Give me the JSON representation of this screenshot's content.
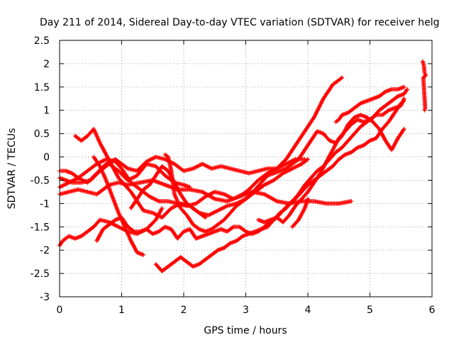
{
  "chart_data": {
    "type": "scatter",
    "title": "Day 211 of 2014, Sidereal Day-to-day VTEC variation (SDTVAR) for receiver helg",
    "xlabel": "GPS time / hours",
    "ylabel": "SDTVAR / TECUs",
    "xlim": [
      0,
      6
    ],
    "ylim": [
      -3,
      2.5
    ],
    "xticks": [
      0,
      1,
      2,
      3,
      4,
      5,
      6
    ],
    "xtick_labels": [
      "0",
      "1",
      "2",
      "3",
      "4",
      "5",
      "6"
    ],
    "yticks": [
      2.5,
      2,
      1.5,
      1,
      0.5,
      0,
      -0.5,
      -1,
      -1.5,
      -2,
      -2.5,
      -3
    ],
    "ytick_labels": [
      "2.5",
      "2",
      "1.5",
      "1",
      "0.5",
      "0",
      "-0.5",
      "-1",
      "-1.5",
      "-2",
      "-2.5",
      "-3"
    ],
    "grid": true,
    "marker": "+",
    "color": "#ff0000",
    "series": [
      {
        "x": [
          0.0,
          0.1,
          0.2,
          0.3,
          0.45,
          0.6,
          0.75,
          0.9,
          1.0,
          1.1,
          1.25,
          1.4,
          1.55,
          1.7,
          1.85,
          2.0,
          2.15,
          2.3,
          2.45,
          2.6,
          2.75,
          2.9,
          3.05,
          3.2,
          3.35,
          3.5,
          3.65,
          3.8,
          3.95
        ],
        "y": [
          -0.3,
          -0.3,
          -0.35,
          -0.45,
          -0.55,
          -0.35,
          -0.15,
          -0.05,
          -0.15,
          -0.25,
          -0.3,
          -0.1,
          0.0,
          -0.05,
          -0.15,
          -0.3,
          -0.25,
          -0.15,
          -0.25,
          -0.2,
          -0.25,
          -0.3,
          -0.35,
          -0.3,
          -0.25,
          -0.25,
          -0.15,
          -0.05,
          -0.05
        ]
      },
      {
        "x": [
          0.0,
          0.1,
          0.2,
          0.35,
          0.5,
          0.65,
          0.8,
          0.95,
          1.1,
          1.25,
          1.4,
          1.55,
          1.7,
          1.85,
          2.0,
          2.1
        ],
        "y": [
          -0.45,
          -0.5,
          -0.55,
          -0.55,
          -0.5,
          -0.3,
          -0.15,
          -0.3,
          -0.5,
          -0.4,
          -0.15,
          -0.2,
          -0.4,
          -0.55,
          -0.6,
          -0.65
        ]
      },
      {
        "x": [
          0.0,
          0.15,
          0.3,
          0.45,
          0.6,
          0.75,
          0.9,
          1.0,
          1.15,
          1.3,
          1.45,
          1.6,
          1.75,
          1.9,
          2.05,
          2.2,
          2.35,
          2.5,
          2.65,
          2.8,
          2.95,
          3.05,
          3.2,
          3.35,
          3.5,
          3.65,
          3.8,
          3.95,
          4.1,
          4.25,
          4.4,
          4.55
        ],
        "y": [
          -0.65,
          -0.55,
          -0.45,
          -0.3,
          -0.15,
          -0.05,
          -0.1,
          -0.25,
          -0.55,
          -0.7,
          -0.85,
          -0.95,
          -0.95,
          -1.0,
          -1.05,
          -1.0,
          -0.85,
          -0.75,
          -0.8,
          -0.9,
          -0.8,
          -0.7,
          -0.5,
          -0.35,
          -0.25,
          -0.05,
          0.25,
          0.55,
          0.85,
          1.25,
          1.55,
          1.7
        ]
      },
      {
        "x": [
          0.0,
          0.15,
          0.3,
          0.45,
          0.6,
          0.7,
          0.8,
          0.95,
          1.1,
          1.3,
          1.5,
          1.7,
          1.9,
          2.1,
          2.3,
          2.5,
          2.7,
          2.9,
          3.1,
          3.3,
          3.5,
          3.7,
          3.9,
          4.1,
          4.3,
          4.5,
          4.7
        ],
        "y": [
          -0.8,
          -0.75,
          -0.7,
          -0.75,
          -0.8,
          -0.7,
          -0.6,
          -0.55,
          -0.6,
          -0.55,
          -0.5,
          -0.6,
          -0.7,
          -0.7,
          -0.75,
          -0.9,
          -0.95,
          -0.85,
          -0.75,
          -0.8,
          -0.95,
          -1.0,
          -0.95,
          -0.95,
          -1.0,
          -1.0,
          -0.95
        ]
      },
      {
        "x": [
          0.25,
          0.35,
          0.45,
          0.55,
          0.65,
          0.75,
          0.85,
          0.95,
          1.05,
          1.15,
          1.25,
          1.35,
          1.5,
          1.65,
          1.8,
          1.95,
          2.1,
          2.25,
          2.4,
          2.55,
          2.7,
          2.85,
          3.0,
          3.15,
          3.3,
          3.45,
          3.6,
          3.75,
          3.9,
          4.0
        ],
        "y": [
          0.45,
          0.35,
          0.45,
          0.6,
          0.3,
          0.05,
          -0.2,
          -0.45,
          -0.6,
          -0.75,
          -0.95,
          -1.15,
          -1.2,
          -1.3,
          -1.1,
          -1.0,
          -1.05,
          -1.2,
          -1.25,
          -1.15,
          -1.05,
          -1.0,
          -0.9,
          -0.75,
          -0.6,
          -0.5,
          -0.35,
          -0.25,
          -0.15,
          -0.05
        ]
      },
      {
        "x": [
          0.0,
          0.05,
          0.1,
          0.15,
          0.25,
          0.35,
          0.45,
          0.55,
          0.65,
          0.8,
          0.95,
          1.1,
          1.25,
          1.4,
          1.55,
          1.65
        ],
        "y": [
          -1.9,
          -1.8,
          -1.75,
          -1.7,
          -1.75,
          -1.7,
          -1.6,
          -1.5,
          -1.35,
          -1.4,
          -1.5,
          -1.6,
          -1.65,
          -1.55,
          -1.35,
          -1.1
        ]
      },
      {
        "x": [
          0.6,
          0.7,
          0.8,
          0.9,
          1.0,
          1.1,
          1.2,
          1.3,
          1.4,
          1.5,
          1.6,
          1.7,
          1.8,
          1.9,
          2.0,
          2.1,
          2.2,
          2.3,
          2.4,
          2.5,
          2.6,
          2.7,
          2.8,
          2.9,
          3.0,
          3.1,
          3.2,
          3.3,
          3.4,
          3.5,
          3.6,
          3.7,
          3.8,
          3.9,
          4.0,
          4.1,
          4.2,
          4.3,
          4.4,
          4.5,
          4.6,
          4.7,
          4.8,
          4.9,
          5.0,
          5.1,
          5.2,
          5.3,
          5.4,
          5.5,
          5.55
        ],
        "y": [
          -1.8,
          -1.55,
          -1.45,
          -1.35,
          -1.3,
          -1.5,
          -1.6,
          -1.6,
          -1.55,
          -1.65,
          -1.6,
          -1.5,
          -1.55,
          -1.75,
          -1.6,
          -1.55,
          -1.75,
          -1.7,
          -1.65,
          -1.6,
          -1.55,
          -1.6,
          -1.5,
          -1.5,
          -1.6,
          -1.65,
          -1.6,
          -1.5,
          -1.4,
          -1.3,
          -1.15,
          -1.0,
          -0.9,
          -0.75,
          -0.6,
          -0.5,
          -0.4,
          -0.3,
          -0.2,
          -0.05,
          0.05,
          0.1,
          0.2,
          0.25,
          0.35,
          0.4,
          0.6,
          0.75,
          0.95,
          1.15,
          1.2
        ]
      },
      {
        "x": [
          0.55,
          0.65,
          0.75,
          0.85,
          0.95,
          1.05,
          1.15,
          1.25,
          1.35
        ],
        "y": [
          0.0,
          -0.2,
          -0.5,
          -0.85,
          -1.2,
          -1.5,
          -1.8,
          -2.05,
          -2.1
        ]
      },
      {
        "x": [
          1.55,
          1.65,
          1.75,
          1.85,
          1.95,
          2.05,
          2.15,
          2.25,
          2.35,
          2.45,
          2.55,
          2.65,
          2.75,
          2.85,
          2.95,
          3.05,
          3.15,
          3.25,
          3.35,
          3.45,
          3.55,
          3.65,
          3.75,
          3.85,
          3.95,
          4.05,
          4.15,
          4.25,
          4.35,
          4.45,
          4.55,
          4.65,
          4.75,
          4.85,
          4.95,
          5.05,
          5.15,
          5.25,
          5.35,
          5.45,
          5.55,
          5.6
        ],
        "y": [
          -2.3,
          -2.45,
          -2.35,
          -2.25,
          -2.15,
          -2.25,
          -2.35,
          -2.3,
          -2.2,
          -2.1,
          -2.0,
          -1.95,
          -1.85,
          -1.8,
          -1.7,
          -1.65,
          -1.6,
          -1.55,
          -1.5,
          -1.35,
          -1.2,
          -1.1,
          -0.95,
          -0.8,
          -0.6,
          -0.45,
          -0.3,
          -0.2,
          -0.05,
          0.1,
          0.2,
          0.35,
          0.5,
          0.65,
          0.75,
          0.85,
          1.0,
          1.1,
          1.2,
          1.3,
          1.35,
          1.45
        ]
      },
      {
        "x": [
          1.7,
          1.75,
          1.8,
          1.85,
          1.95,
          2.05,
          2.15,
          2.25,
          2.35,
          2.45,
          2.55,
          2.65,
          2.75,
          2.85,
          2.95,
          3.05,
          3.15,
          3.25,
          3.35,
          3.45,
          3.55,
          3.65,
          3.75,
          3.85,
          3.95,
          4.05,
          4.15,
          4.25,
          4.35,
          4.45,
          4.55,
          4.65,
          4.75,
          4.85,
          4.95,
          5.05,
          5.15,
          5.25,
          5.35,
          5.45,
          5.55
        ],
        "y": [
          0.05,
          0.0,
          -0.3,
          -0.8,
          -1.1,
          -1.25,
          -1.45,
          -1.55,
          -1.6,
          -1.55,
          -1.45,
          -1.35,
          -1.2,
          -1.05,
          -0.95,
          -0.85,
          -0.7,
          -0.55,
          -0.4,
          -0.35,
          -0.3,
          -0.25,
          -0.15,
          -0.05,
          0.15,
          0.35,
          0.55,
          0.5,
          0.35,
          0.3,
          0.45,
          0.7,
          0.85,
          0.9,
          0.85,
          0.75,
          0.6,
          0.35,
          0.15,
          0.4,
          0.6
        ]
      },
      {
        "x": [
          1.15,
          1.25,
          1.35,
          1.45,
          1.55,
          1.65,
          1.75,
          1.85,
          1.95,
          2.05,
          2.15,
          2.25,
          2.35
        ],
        "y": [
          -1.1,
          -0.9,
          -0.7,
          -0.6,
          -0.4,
          -0.2,
          -0.3,
          -0.55,
          -0.8,
          -1.0,
          -1.1,
          -1.2,
          -1.3
        ]
      },
      {
        "x": [
          3.2,
          3.3,
          3.4,
          3.5,
          3.6,
          3.7,
          3.8,
          3.9,
          4.0,
          4.1,
          4.2,
          4.3,
          4.4,
          4.5,
          4.6,
          4.7,
          4.8,
          4.9,
          5.0,
          5.1,
          5.2,
          5.3,
          5.4,
          5.5,
          5.55
        ],
        "y": [
          -1.35,
          -1.4,
          -1.35,
          -1.3,
          -1.4,
          -1.25,
          -1.05,
          -0.9,
          -0.75,
          -0.55,
          -0.35,
          -0.1,
          0.15,
          0.4,
          0.55,
          0.7,
          0.8,
          0.75,
          0.8,
          0.9,
          0.9,
          1.0,
          1.05,
          1.1,
          1.25
        ]
      },
      {
        "x": [
          4.45,
          4.5,
          4.55,
          4.65,
          4.75,
          4.85,
          4.95,
          5.05,
          5.15,
          5.25,
          5.35,
          5.45,
          5.55
        ],
        "y": [
          0.75,
          0.8,
          0.9,
          0.95,
          1.05,
          1.15,
          1.2,
          1.25,
          1.3,
          1.4,
          1.45,
          1.45,
          1.5
        ]
      },
      {
        "x": [
          3.75,
          3.85,
          3.95,
          4.0
        ],
        "y": [
          -1.5,
          -1.35,
          -1.1,
          -0.9
        ]
      },
      {
        "x": [
          5.85,
          5.87,
          5.88,
          5.9,
          5.86,
          5.89,
          5.88
        ],
        "y": [
          2.05,
          1.95,
          1.8,
          1.75,
          1.7,
          1.05,
          1.0
        ]
      }
    ]
  }
}
